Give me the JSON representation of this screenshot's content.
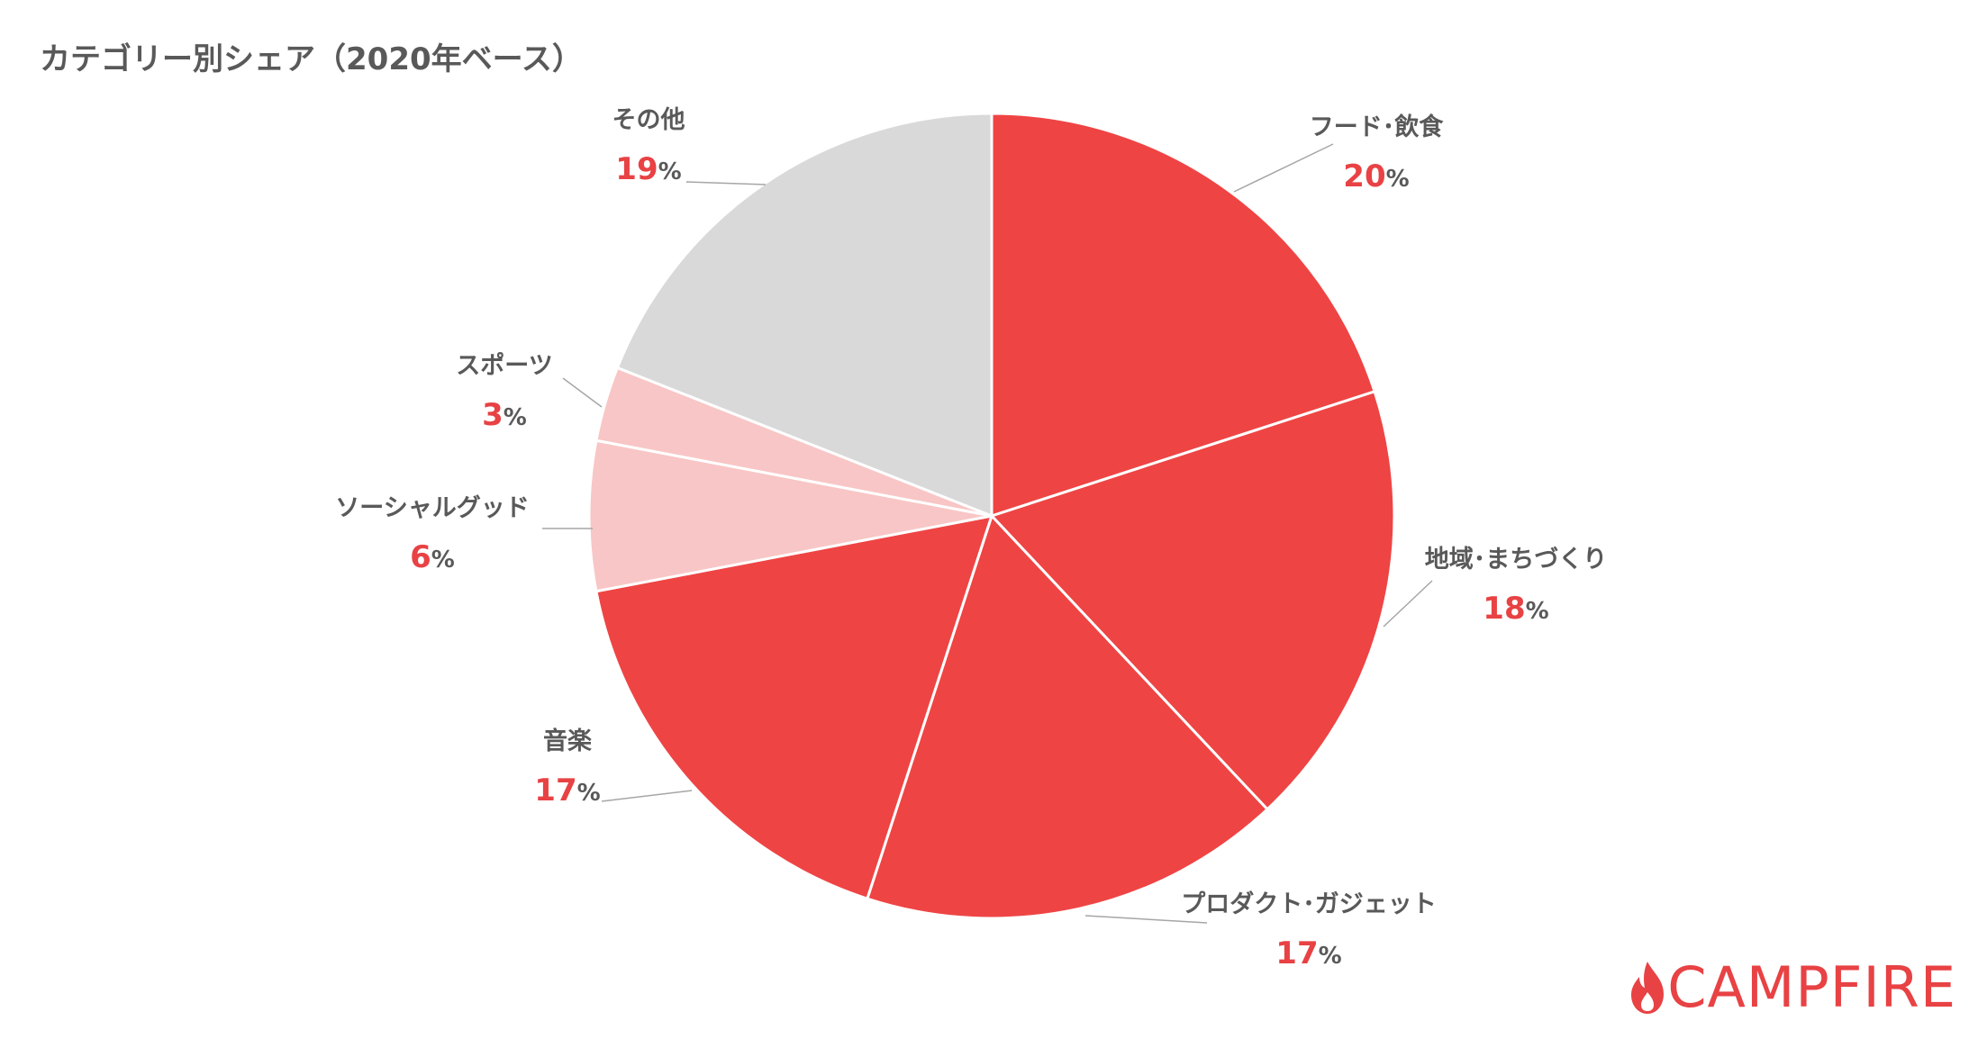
{
  "chart_data": {
    "type": "pie",
    "title": "カテゴリー別シェア（2020年ベース）",
    "unit": "%",
    "slices": [
      {
        "label": "フード･飲食",
        "value": 20,
        "color": "#ef4444"
      },
      {
        "label": "地域･まちづくり",
        "value": 18,
        "color": "#ef4444"
      },
      {
        "label": "プロダクト･ガジェット",
        "value": 17,
        "color": "#ef4444"
      },
      {
        "label": "音楽",
        "value": 17,
        "color": "#ef4444"
      },
      {
        "label": "ソーシャルグッド",
        "value": 6,
        "color": "#f8c6c6"
      },
      {
        "label": "スポーツ",
        "value": 3,
        "color": "#f8c6c6"
      },
      {
        "label": "その他",
        "value": 19,
        "color": "#d9d9d9"
      }
    ]
  },
  "logo": {
    "text": "CAMPFIRE",
    "color": "#e84244"
  }
}
